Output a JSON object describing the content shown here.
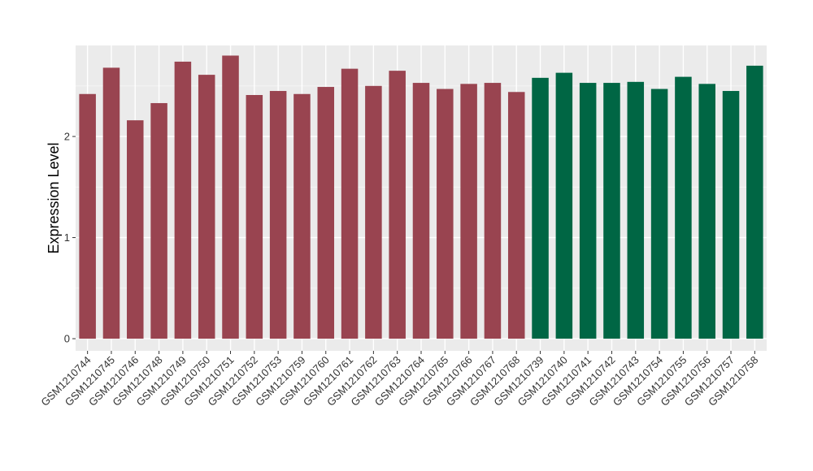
{
  "chart_data": {
    "type": "bar",
    "title": "",
    "xlabel": "",
    "ylabel": "Expression Level",
    "ylim": [
      -0.12,
      2.9
    ],
    "yticks": [
      0,
      1,
      2
    ],
    "grid": true,
    "legend": "none",
    "panel_background": "#ebebeb",
    "categories": [
      "GSM1210744",
      "GSM1210745",
      "GSM1210746",
      "GSM1210748",
      "GSM1210749",
      "GSM1210750",
      "GSM1210751",
      "GSM1210752",
      "GSM1210753",
      "GSM1210759",
      "GSM1210760",
      "GSM1210761",
      "GSM1210762",
      "GSM1210763",
      "GSM1210764",
      "GSM1210765",
      "GSM1210766",
      "GSM1210767",
      "GSM1210768",
      "GSM1210739",
      "GSM1210740",
      "GSM1210741",
      "GSM1210742",
      "GSM1210743",
      "GSM1210754",
      "GSM1210755",
      "GSM1210756",
      "GSM1210757",
      "GSM1210758"
    ],
    "values": [
      2.42,
      2.68,
      2.16,
      2.33,
      2.74,
      2.61,
      2.8,
      2.41,
      2.45,
      2.42,
      2.49,
      2.67,
      2.5,
      2.65,
      2.53,
      2.47,
      2.52,
      2.53,
      2.44,
      2.58,
      2.63,
      2.53,
      2.53,
      2.54,
      2.47,
      2.59,
      2.52,
      2.45,
      2.7
    ],
    "groups": [
      "a",
      "a",
      "a",
      "a",
      "a",
      "a",
      "a",
      "a",
      "a",
      "a",
      "a",
      "a",
      "a",
      "a",
      "a",
      "a",
      "a",
      "a",
      "a",
      "b",
      "b",
      "b",
      "b",
      "b",
      "b",
      "b",
      "b",
      "b",
      "b"
    ],
    "group_colors": {
      "a": "#994450",
      "b": "#006644"
    }
  }
}
